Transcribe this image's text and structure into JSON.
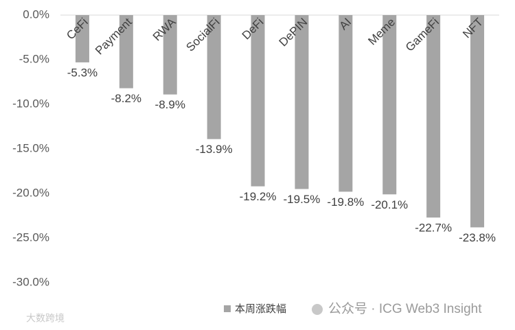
{
  "chart_data": {
    "type": "bar",
    "categories": [
      "CeFi",
      "Payment",
      "RWA",
      "SocialFi",
      "DeFi",
      "DePIN",
      "AI",
      "Meme",
      "GameFi",
      "NFT"
    ],
    "series": [
      {
        "name": "本周涨跌幅",
        "color": "#a5a5a5",
        "values": [
          -5.3,
          -8.2,
          -8.9,
          -13.9,
          -19.2,
          -19.5,
          -19.8,
          -20.1,
          -22.7,
          -23.8
        ],
        "value_labels": [
          "-5.3%",
          "-8.2%",
          "-8.9%",
          "-13.9%",
          "-19.2%",
          "-19.5%",
          "-19.8%",
          "-20.1%",
          "-22.7%",
          "-23.8%"
        ]
      }
    ],
    "ylim": [
      -30,
      0
    ],
    "yticks": [
      {
        "value": 0,
        "label": "0.0%"
      },
      {
        "value": -5,
        "label": "-5.0%"
      },
      {
        "value": -10,
        "label": "-10.0%"
      },
      {
        "value": -15,
        "label": "-15.0%"
      },
      {
        "value": -20,
        "label": "-20.0%"
      },
      {
        "value": -25,
        "label": "-25.0%"
      },
      {
        "value": -30,
        "label": "-30.0%"
      }
    ],
    "grid": false,
    "legend": "bottom",
    "annotations": [
      "公众号 · ICG Web3 Insight",
      "大数跨境"
    ]
  }
}
